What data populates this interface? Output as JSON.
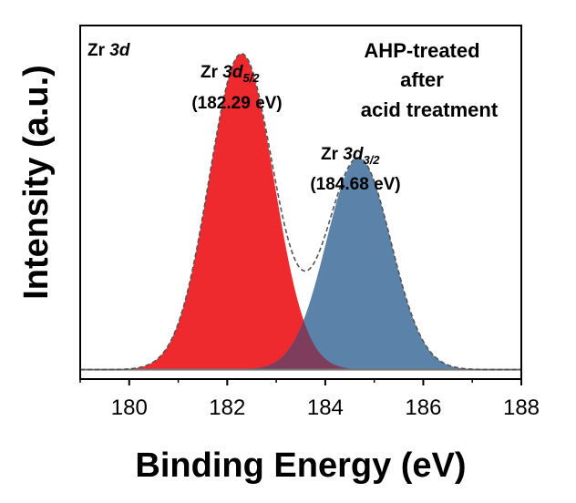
{
  "chart_data": {
    "type": "area",
    "xlabel": "Binding Energy (eV)",
    "ylabel": "Intensity (a.u.)",
    "xlim": [
      179,
      188
    ],
    "ylim": [
      0,
      1.12
    ],
    "x_ticks": [
      180,
      182,
      184,
      186,
      188
    ],
    "x_tick_labels": [
      "180",
      "182",
      "184",
      "186",
      "188"
    ],
    "yticks_shown": false,
    "grid": false,
    "legend": "none",
    "baseline": 0.03,
    "series": [
      {
        "center": 182.29,
        "amplitude": 1.0,
        "fwhm": 1.55,
        "fill": "#ee2a2f"
      },
      {
        "center": 184.68,
        "amplitude": 0.67,
        "fwhm": 1.55,
        "fill": "#5b82a8"
      }
    ],
    "envelope_color": "#555555",
    "overlap_color": "#7f3d5e",
    "annotations": {
      "element": {
        "name": "Zr",
        "orbital": "3d"
      },
      "sample": [
        "AHP-treated",
        "after",
        "acid treatment"
      ],
      "peak1": {
        "name": "Zr",
        "orbital": "3d",
        "sub": "5/2",
        "energy": "(182.29 eV)"
      },
      "peak2": {
        "name": "Zr",
        "orbital": "3d",
        "sub": "3/2",
        "energy": "(184.68 eV)"
      }
    }
  }
}
